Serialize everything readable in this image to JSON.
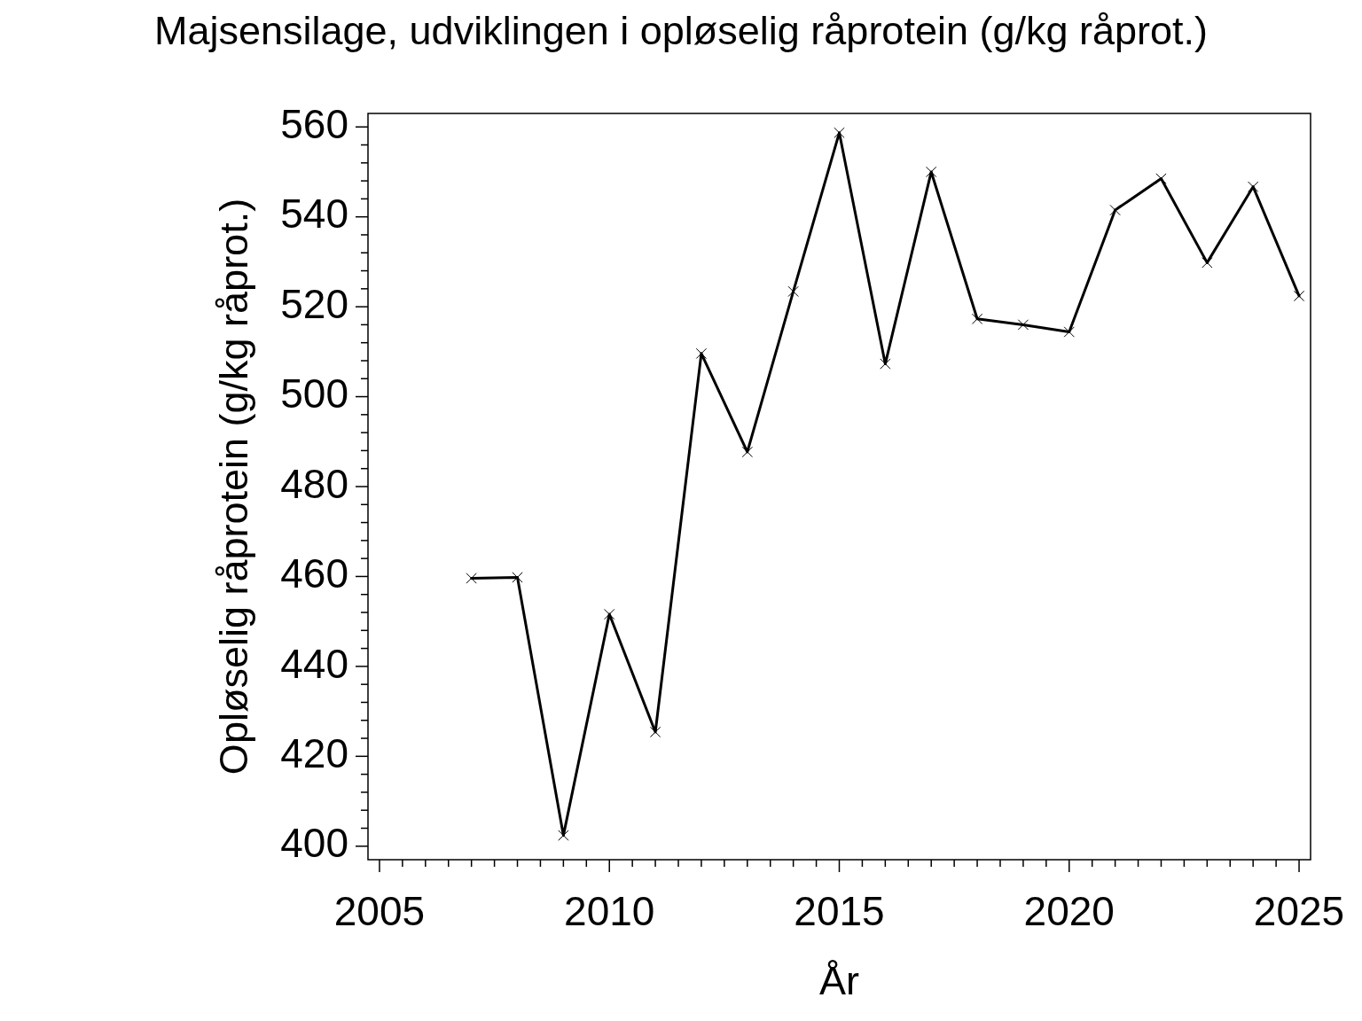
{
  "chart_data": {
    "type": "line",
    "title": "Majsensilage, udviklingen i opløselig råprotein (g/kg råprot.)",
    "xlabel": "År",
    "ylabel": "Opløselig råprotein (g/kg råprot.)",
    "x": [
      2007,
      2008,
      2009,
      2010,
      2011,
      2012,
      2013,
      2014,
      2015,
      2016,
      2017,
      2018,
      2019,
      2020,
      2021,
      2022,
      2023,
      2024,
      2025
    ],
    "values": [
      459.6,
      459.8,
      402.4,
      451.6,
      425.4,
      509.6,
      487.7,
      523.4,
      558.7,
      507.3,
      550.0,
      517.3,
      516.0,
      514.4,
      541.5,
      548.5,
      529.8,
      546.7,
      522.4
    ],
    "color": "#000000",
    "marker": "cross",
    "line_style": "solid",
    "grid": false,
    "legend": false,
    "xlim": [
      2004.75,
      2025.25
    ],
    "xticks": [
      2005,
      {
        "value": 2005.5,
        "label": null
      },
      {
        "value": 2006,
        "label": null
      },
      {
        "value": 2006.5,
        "label": null
      },
      {
        "value": 2007,
        "label": null
      },
      {
        "value": 2007.5,
        "label": null
      },
      {
        "value": 2008,
        "label": null
      },
      {
        "value": 2008.5,
        "label": null
      },
      {
        "value": 2009,
        "label": null
      },
      {
        "value": 2009.5,
        "label": null
      },
      2010,
      {
        "value": 2010.5,
        "label": null
      },
      {
        "value": 2011,
        "label": null
      },
      {
        "value": 2011.5,
        "label": null
      },
      {
        "value": 2012,
        "label": null
      },
      {
        "value": 2012.5,
        "label": null
      },
      {
        "value": 2013,
        "label": null
      },
      {
        "value": 2013.5,
        "label": null
      },
      {
        "value": 2014,
        "label": null
      },
      {
        "value": 2014.5,
        "label": null
      },
      2015,
      {
        "value": 2015.5,
        "label": null
      },
      {
        "value": 2016,
        "label": null
      },
      {
        "value": 2016.5,
        "label": null
      },
      {
        "value": 2017,
        "label": null
      },
      {
        "value": 2017.5,
        "label": null
      },
      {
        "value": 2018,
        "label": null
      },
      {
        "value": 2018.5,
        "label": null
      },
      {
        "value": 2019,
        "label": null
      },
      {
        "value": 2019.5,
        "label": null
      },
      2020,
      {
        "value": 2020.5,
        "label": null
      },
      {
        "value": 2021,
        "label": null
      },
      {
        "value": 2021.5,
        "label": null
      },
      {
        "value": 2022,
        "label": null
      },
      {
        "value": 2022.5,
        "label": null
      },
      {
        "value": 2023,
        "label": null
      },
      {
        "value": 2023.5,
        "label": null
      },
      {
        "value": 2024,
        "label": null
      },
      {
        "value": 2024.5,
        "label": null
      },
      2025
    ],
    "ylim": [
      397,
      563
    ],
    "yticks": [
      400,
      {
        "value": 404,
        "label": null
      },
      {
        "value": 408,
        "label": null
      },
      {
        "value": 412,
        "label": null
      },
      {
        "value": 416,
        "label": null
      },
      420,
      {
        "value": 424,
        "label": null
      },
      {
        "value": 428,
        "label": null
      },
      {
        "value": 432,
        "label": null
      },
      {
        "value": 436,
        "label": null
      },
      440,
      {
        "value": 444,
        "label": null
      },
      {
        "value": 448,
        "label": null
      },
      {
        "value": 452,
        "label": null
      },
      {
        "value": 456,
        "label": null
      },
      460,
      {
        "value": 464,
        "label": null
      },
      {
        "value": 468,
        "label": null
      },
      {
        "value": 472,
        "label": null
      },
      {
        "value": 476,
        "label": null
      },
      480,
      {
        "value": 484,
        "label": null
      },
      {
        "value": 488,
        "label": null
      },
      {
        "value": 492,
        "label": null
      },
      {
        "value": 496,
        "label": null
      },
      500,
      {
        "value": 504,
        "label": null
      },
      {
        "value": 508,
        "label": null
      },
      {
        "value": 512,
        "label": null
      },
      {
        "value": 516,
        "label": null
      },
      520,
      {
        "value": 524,
        "label": null
      },
      {
        "value": 528,
        "label": null
      },
      {
        "value": 532,
        "label": null
      },
      {
        "value": 536,
        "label": null
      },
      540,
      {
        "value": 544,
        "label": null
      },
      {
        "value": 548,
        "label": null
      },
      {
        "value": 552,
        "label": null
      },
      {
        "value": 556,
        "label": null
      },
      560
    ]
  }
}
